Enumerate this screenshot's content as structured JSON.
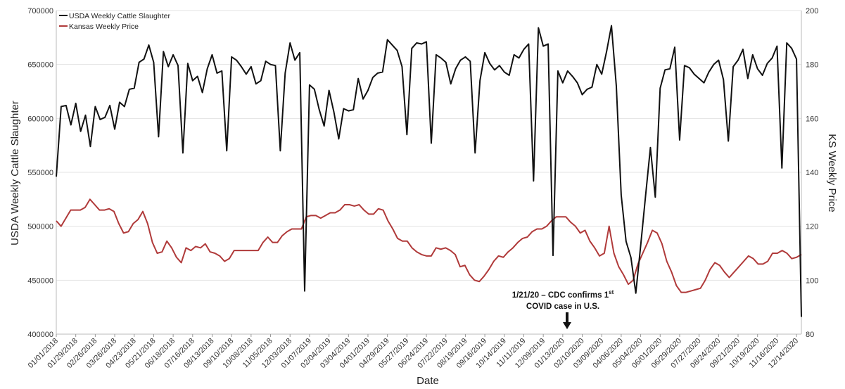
{
  "chart_data": {
    "type": "line",
    "xlabel": "Date",
    "ylabel_left": "USDA Weekly Cattle Slaughter",
    "ylabel_right": "KS Weekly Price",
    "ylim_left": [
      400000,
      700000
    ],
    "ylim_right": [
      80,
      200
    ],
    "yticks_left": [
      "400000",
      "450000",
      "500000",
      "550000",
      "600000",
      "650000",
      "700000"
    ],
    "yticks_right": [
      "80",
      "100",
      "120",
      "140",
      "160",
      "180",
      "200"
    ],
    "x_tick_labels": [
      "01/01/2018",
      "01/29/2018",
      "02/26/2018",
      "03/26/2018",
      "04/23/2018",
      "05/21/2018",
      "06/18/2018",
      "07/16/2018",
      "08/13/2018",
      "09/10/2018",
      "10/08/2018",
      "11/05/2018",
      "12/03/2018",
      "01/07/2019",
      "02/04/2019",
      "03/04/2019",
      "04/01/2019",
      "04/29/2019",
      "05/27/2019",
      "06/24/2019",
      "07/22/2019",
      "08/19/2019",
      "09/16/2019",
      "10/14/2019",
      "11/11/2019",
      "12/09/2019",
      "01/13/2020",
      "02/10/2020",
      "03/09/2020",
      "04/06/2020",
      "05/04/2020",
      "06/01/2020",
      "06/29/2020",
      "07/27/2020",
      "08/24/2020",
      "09/21/2020",
      "10/19/2020",
      "11/16/2020",
      "12/14/2020"
    ],
    "grid": true,
    "legend_position": "top-left",
    "series": [
      {
        "name": "USDA Weekly Cattle Slaughter",
        "axis": "left",
        "color": "#111111",
        "values": [
          546000,
          611000,
          612000,
          594000,
          614000,
          588000,
          603000,
          574000,
          611000,
          599000,
          601000,
          612000,
          590000,
          615000,
          611000,
          627000,
          628000,
          652000,
          655000,
          668000,
          652000,
          583000,
          662000,
          648000,
          659000,
          649000,
          568000,
          651000,
          635000,
          639000,
          624000,
          646000,
          659000,
          642000,
          644000,
          570000,
          657000,
          654000,
          648000,
          641000,
          648000,
          632000,
          635000,
          653000,
          650000,
          649000,
          570000,
          642000,
          670000,
          654000,
          661000,
          440000,
          631000,
          627000,
          608000,
          593000,
          626000,
          606000,
          581000,
          609000,
          607000,
          608000,
          637000,
          618000,
          626000,
          638000,
          642000,
          643000,
          673000,
          668000,
          663000,
          648000,
          585000,
          665000,
          670000,
          669000,
          671000,
          577000,
          659000,
          656000,
          652000,
          632000,
          646000,
          654000,
          657000,
          653000,
          568000,
          635000,
          661000,
          651000,
          645000,
          649000,
          643000,
          640000,
          659000,
          656000,
          664000,
          669000,
          542000,
          684000,
          667000,
          669000,
          473000,
          644000,
          633000,
          644000,
          639000,
          633000,
          622000,
          627000,
          629000,
          650000,
          641000,
          662000,
          686000,
          630000,
          529000,
          486000,
          471000,
          438000,
          482000,
          528000,
          573000,
          527000,
          628000,
          645000,
          646000,
          666000,
          580000,
          649000,
          647000,
          641000,
          637000,
          633000,
          643000,
          650000,
          654000,
          636000,
          579000,
          648000,
          654000,
          664000,
          637000,
          659000,
          646000,
          640000,
          651000,
          656000,
          667000,
          554000,
          670000,
          665000,
          655000,
          416000
        ]
      },
      {
        "name": "Kansas Weekly Price",
        "axis": "right",
        "color": "#b03a3a",
        "values": [
          122,
          120,
          123,
          126,
          126,
          126,
          127,
          130,
          128,
          126,
          126,
          126.5,
          125.5,
          121,
          117.5,
          118,
          121,
          122.5,
          125.5,
          121,
          114,
          110,
          110.5,
          114.5,
          112,
          108.5,
          106.5,
          112,
          111,
          112.5,
          112,
          113.5,
          110.5,
          110,
          109,
          107,
          108,
          111,
          111,
          111,
          111,
          111,
          111,
          114,
          116,
          114,
          114,
          116.5,
          118,
          119,
          119,
          119,
          123.5,
          124,
          124,
          123,
          124,
          125,
          125,
          126,
          128,
          128,
          127.5,
          128,
          126,
          124.5,
          124.5,
          126.5,
          126,
          122,
          119,
          115.5,
          114.5,
          114.5,
          112,
          110.5,
          109.5,
          109,
          109,
          112,
          111.5,
          112,
          111,
          109.5,
          105,
          105.5,
          102,
          100,
          99.5,
          101.5,
          104,
          107,
          109,
          108.5,
          110.5,
          112,
          114,
          115.5,
          116,
          118,
          119,
          119,
          120,
          122,
          123.5,
          123.5,
          123.5,
          121.5,
          120,
          117.5,
          118.5,
          114.5,
          112,
          109,
          110,
          120,
          110,
          105,
          102,
          98.5,
          100,
          106,
          110,
          114,
          118.5,
          117.5,
          113.5,
          107,
          103,
          98,
          95.5,
          95.5,
          96,
          96.5,
          97,
          100,
          104,
          106.5,
          105.5,
          103,
          101,
          103,
          105,
          107,
          109,
          108,
          106,
          106,
          107,
          110,
          110,
          111,
          110,
          108,
          108.5,
          109.5
        ]
      }
    ],
    "annotation": {
      "line1": "1/21/20 – CDC confirms 1",
      "sup": "st",
      "line2": "COVID case in U.S."
    }
  }
}
